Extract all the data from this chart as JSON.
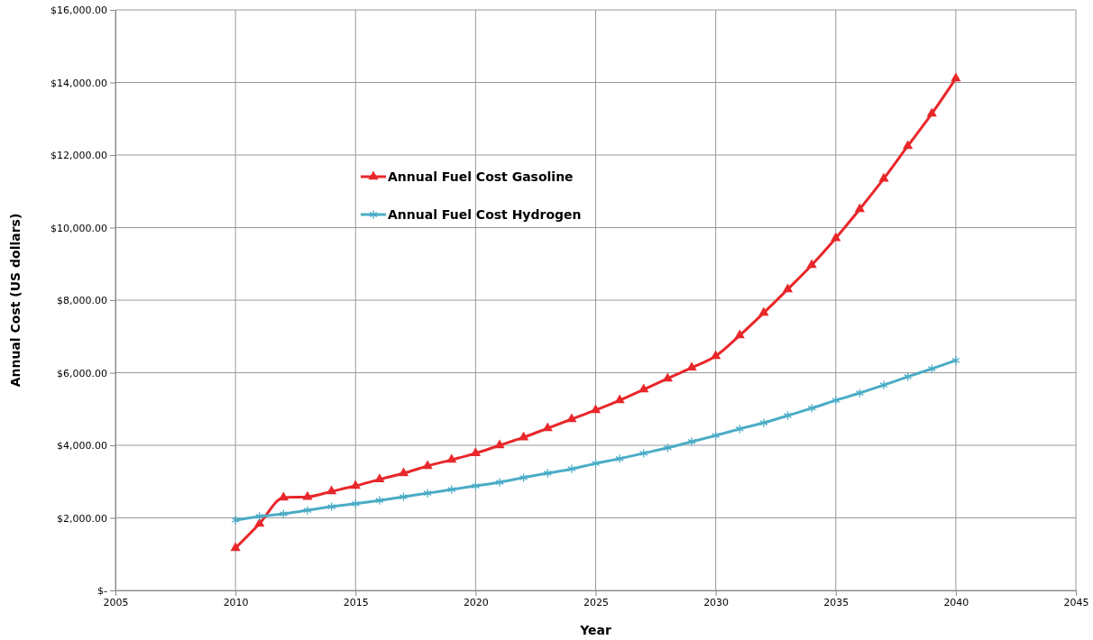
{
  "chart_data": {
    "type": "line",
    "xlabel": "Year",
    "ylabel": "Annual Cost (US dollars)",
    "x": [
      2010,
      2011,
      2012,
      2013,
      2014,
      2015,
      2016,
      2017,
      2018,
      2019,
      2020,
      2021,
      2022,
      2023,
      2024,
      2025,
      2026,
      2027,
      2028,
      2029,
      2030,
      2031,
      2032,
      2033,
      2034,
      2035,
      2036,
      2037,
      2038,
      2039,
      2040
    ],
    "series": [
      {
        "name": "Annual Fuel Cost Gasoline",
        "color": "#e8272a",
        "marker": "triangle",
        "values": [
          1170,
          1840,
          2560,
          2580,
          2730,
          2880,
          3060,
          3230,
          3430,
          3600,
          3780,
          4000,
          4220,
          4470,
          4720,
          4970,
          5240,
          5540,
          5840,
          6140,
          6460,
          7030,
          7650,
          8300,
          8970,
          9710,
          10510,
          11350,
          12250,
          13140,
          14110
        ]
      },
      {
        "name": "Annual Fuel Cost Hydrogen",
        "color": "#4bacc6",
        "marker": "cross",
        "values": [
          1940,
          2040,
          2110,
          2210,
          2310,
          2390,
          2480,
          2580,
          2680,
          2780,
          2880,
          2980,
          3110,
          3230,
          3350,
          3500,
          3630,
          3780,
          3930,
          4100,
          4270,
          4450,
          4620,
          4820,
          5020,
          5240,
          5440,
          5660,
          5890,
          6110,
          6340
        ]
      }
    ],
    "xlim": [
      2005,
      2045
    ],
    "xticks": [
      2005,
      2010,
      2015,
      2020,
      2025,
      2030,
      2035,
      2040,
      2045
    ],
    "ylim": [
      0,
      16000
    ],
    "yticks": [
      {
        "value": 0,
        "label": "$-"
      },
      {
        "value": 2000,
        "label": "$2,000.00"
      },
      {
        "value": 4000,
        "label": "$4,000.00"
      },
      {
        "value": 6000,
        "label": "$6,000.00"
      },
      {
        "value": 8000,
        "label": "$8,000.00"
      },
      {
        "value": 10000,
        "label": "$10,000.00"
      },
      {
        "value": 12000,
        "label": "$12,000.00"
      },
      {
        "value": 14000,
        "label": "$14,000.00"
      },
      {
        "value": 16000,
        "label": "$16,000.00"
      }
    ],
    "grid": true,
    "legend": "top left",
    "line_style": "solid"
  }
}
